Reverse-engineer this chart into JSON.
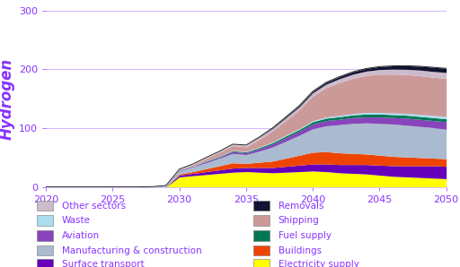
{
  "years": [
    2020,
    2021,
    2022,
    2023,
    2024,
    2025,
    2026,
    2027,
    2028,
    2029,
    2030,
    2031,
    2032,
    2033,
    2034,
    2035,
    2036,
    2037,
    2038,
    2039,
    2040,
    2041,
    2042,
    2043,
    2044,
    2045,
    2046,
    2047,
    2048,
    2049,
    2050
  ],
  "sectors": [
    {
      "name": "Electricity supply",
      "color": "#ffff00",
      "values": [
        0,
        0,
        0,
        0,
        0,
        0,
        0,
        0,
        0,
        0,
        17,
        19,
        21,
        23,
        25,
        26,
        25,
        24,
        25,
        26,
        27,
        26,
        24,
        23,
        22,
        20,
        18,
        17,
        16,
        15,
        14
      ]
    },
    {
      "name": "Surface transport",
      "color": "#6600bb",
      "values": [
        0,
        0,
        0,
        0,
        0,
        0,
        0,
        0,
        0,
        0.5,
        3,
        4,
        5,
        6,
        7,
        7,
        8,
        9,
        10,
        11,
        12,
        13,
        14,
        15,
        16,
        17,
        18,
        19,
        20,
        21,
        21
      ]
    },
    {
      "name": "Buildings",
      "color": "#ee4400",
      "values": [
        0,
        0,
        0,
        0,
        0,
        0,
        0,
        0,
        0,
        0,
        2,
        3,
        5,
        7,
        9,
        7,
        9,
        11,
        14,
        17,
        20,
        21,
        20,
        19,
        18,
        17,
        16,
        15,
        14,
        13,
        13
      ]
    },
    {
      "name": "Manufacturing & construction",
      "color": "#aabbd0",
      "values": [
        0,
        0,
        0,
        0,
        0,
        0,
        0,
        0,
        0.5,
        2,
        5,
        8,
        10,
        13,
        16,
        15,
        19,
        24,
        29,
        34,
        40,
        44,
        48,
        51,
        53,
        54,
        55,
        54,
        53,
        52,
        50
      ]
    },
    {
      "name": "Aviation",
      "color": "#8844bb",
      "values": [
        0,
        0,
        0,
        0,
        0,
        0,
        0,
        0,
        0,
        0,
        1,
        1,
        2,
        2,
        3,
        3,
        4,
        5,
        6,
        7,
        8,
        9,
        9,
        10,
        10,
        11,
        11,
        12,
        12,
        12,
        13
      ]
    },
    {
      "name": "Fuel supply",
      "color": "#007755",
      "values": [
        0,
        0,
        0,
        0,
        0,
        0,
        0,
        0,
        0,
        0,
        0.5,
        0.5,
        1,
        1,
        1.5,
        1.5,
        2,
        2.5,
        3,
        3,
        4,
        4,
        4.5,
        4.5,
        5,
        5,
        5,
        5,
        5,
        5,
        5
      ]
    },
    {
      "name": "Waste",
      "color": "#aaddee",
      "values": [
        0,
        0,
        0,
        0,
        0,
        0,
        0,
        0,
        0,
        0,
        0.3,
        0.4,
        0.5,
        0.6,
        0.7,
        0.8,
        1,
        1.2,
        1.4,
        1.6,
        1.8,
        2,
        2.2,
        2.4,
        2.6,
        2.8,
        3,
        3.2,
        3.4,
        3.6,
        3.8
      ]
    },
    {
      "name": "Shipping",
      "color": "#cc9999",
      "values": [
        0,
        0,
        0,
        0,
        0,
        0,
        0,
        0,
        0,
        0,
        1,
        2,
        4,
        6,
        8,
        8,
        13,
        19,
        25,
        32,
        42,
        50,
        56,
        60,
        63,
        65,
        66,
        66,
        66,
        65,
        65
      ]
    },
    {
      "name": "Other sectors",
      "color": "#ccbbcc",
      "values": [
        0,
        0,
        0,
        0,
        0,
        0,
        0,
        0,
        0,
        0,
        0.5,
        1,
        1.5,
        2,
        2.5,
        3,
        3.5,
        4,
        4.5,
        5,
        5.5,
        6,
        6.5,
        7,
        7.5,
        8,
        8.5,
        9,
        9.5,
        10,
        10
      ]
    },
    {
      "name": "Removals",
      "color": "#111133",
      "values": [
        0,
        0,
        0,
        0,
        0,
        0,
        0,
        0,
        0,
        0,
        0,
        0,
        0,
        0,
        0,
        0,
        0.5,
        1,
        1.5,
        2,
        2.5,
        3,
        3.5,
        4,
        4.5,
        5,
        5.5,
        6,
        6.5,
        7,
        7
      ]
    }
  ],
  "ylabel": "Hydrogen",
  "ylabel_color": "#8833ff",
  "ylabel_fontsize": 12,
  "ylim": [
    0,
    300
  ],
  "xlim": [
    2020,
    2050
  ],
  "yticks": [
    0,
    100,
    200,
    300
  ],
  "xticks": [
    2020,
    2025,
    2030,
    2035,
    2040,
    2045,
    2050
  ],
  "grid_color": "#ccaaff",
  "tick_color": "#8833ff",
  "tick_fontsize": 8,
  "legend_text_color": "#8833ff",
  "legend_fontsize": 7.5,
  "background_color": "#ffffff",
  "left_legend": [
    "Other sectors",
    "Waste",
    "Aviation",
    "Manufacturing & construction",
    "Surface transport"
  ],
  "right_legend": [
    "Removals",
    "Shipping",
    "Fuel supply",
    "Buildings",
    "Electricity supply"
  ]
}
